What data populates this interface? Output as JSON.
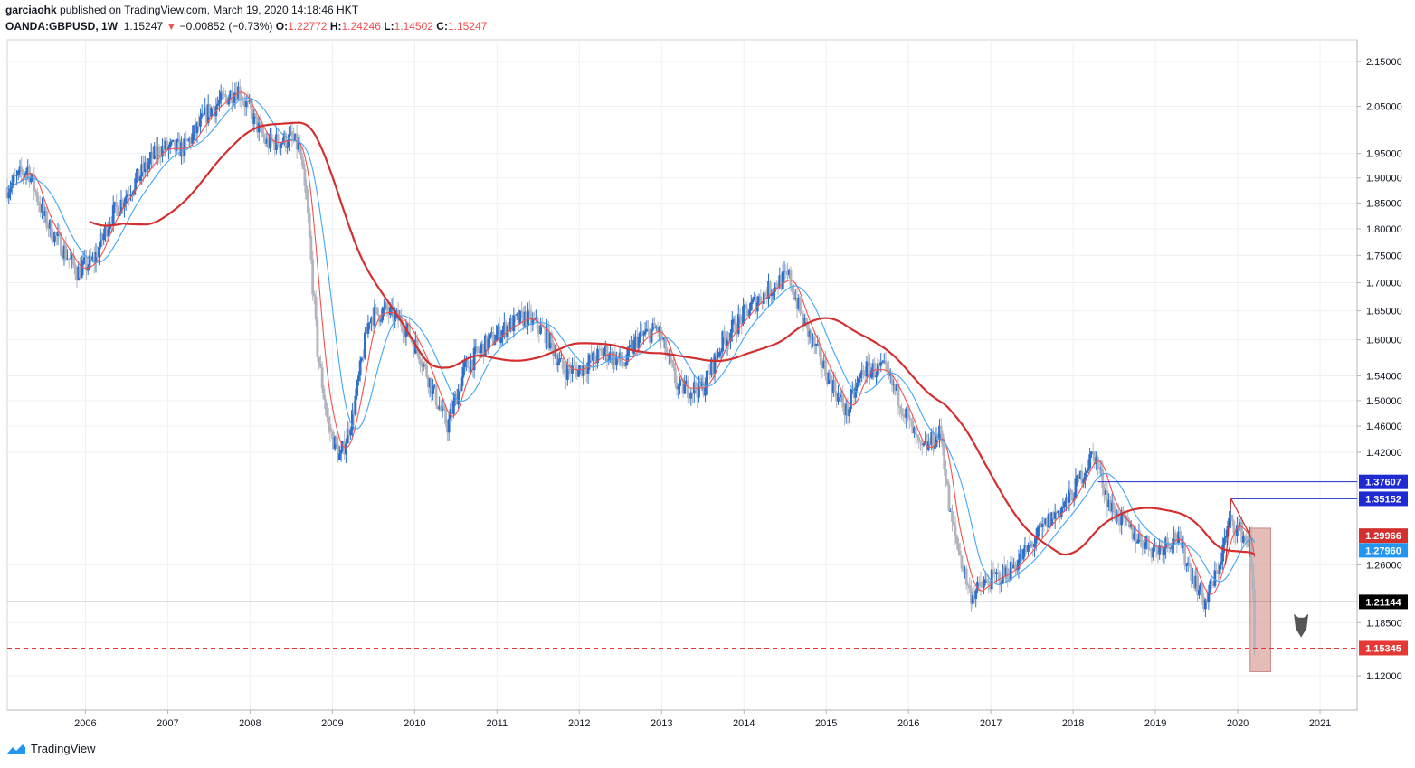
{
  "header": {
    "author": "garciaohk",
    "published_text": "published on TradingView.com, March 19, 2020 14:18:46 HKT",
    "symbol": "OANDA:GBPUSD, 1W",
    "last": "1.15247",
    "change": "−0.00852 (−0.73%)",
    "o_label": "O:",
    "o_value": "1.22772",
    "h_label": "H:",
    "h_value": "1.24246",
    "l_label": "L:",
    "l_value": "1.14502",
    "c_label": "C:",
    "c_value": "1.15247"
  },
  "footer": {
    "brand": "TradingView"
  },
  "colors": {
    "up": "#2f6fc9",
    "down": "#b2b5be",
    "ema_fast": "#ef5350",
    "ema_mid": "#42a5f5",
    "ema_slow": "#d32f2f",
    "support": "#000000",
    "resistance": "#1e2bd0",
    "target": "#e53935",
    "box": "#d8a09a"
  },
  "chart_data": {
    "type": "candlestick",
    "xlabel": "",
    "ylabel": "",
    "x_ticks": [
      "2006",
      "2007",
      "2008",
      "2009",
      "2010",
      "2011",
      "2012",
      "2013",
      "2014",
      "2015",
      "2016",
      "2017",
      "2018",
      "2019",
      "2020",
      "2021"
    ],
    "y_ticks": [
      2.15,
      2.05,
      1.95,
      1.9,
      1.85,
      1.8,
      1.75,
      1.7,
      1.65,
      1.6,
      1.54,
      1.5,
      1.46,
      1.42,
      1.26,
      1.185,
      1.12
    ],
    "y_tick_labels": [
      "2.15000",
      "2.05000",
      "1.95000",
      "1.90000",
      "1.85000",
      "1.80000",
      "1.75000",
      "1.70000",
      "1.65000",
      "1.60000",
      "1.54000",
      "1.50000",
      "1.46000",
      "1.42000",
      "1.26000",
      "1.18500",
      "1.12000"
    ],
    "ylim": [
      1.08,
      2.2
    ],
    "xlim": [
      2005.05,
      2021.45
    ],
    "y_scale": "log",
    "price_path": [
      [
        2005.05,
        1.88
      ],
      [
        2005.3,
        1.92
      ],
      [
        2005.5,
        1.82
      ],
      [
        2005.9,
        1.72
      ],
      [
        2006.1,
        1.74
      ],
      [
        2006.3,
        1.82
      ],
      [
        2006.55,
        1.88
      ],
      [
        2006.9,
        1.96
      ],
      [
        2007.2,
        1.96
      ],
      [
        2007.5,
        2.04
      ],
      [
        2007.85,
        2.09
      ],
      [
        2008.2,
        1.97
      ],
      [
        2008.5,
        1.98
      ],
      [
        2008.6,
        1.96
      ],
      [
        2008.7,
        1.83
      ],
      [
        2008.82,
        1.58
      ],
      [
        2008.95,
        1.46
      ],
      [
        2009.1,
        1.41
      ],
      [
        2009.25,
        1.48
      ],
      [
        2009.45,
        1.64
      ],
      [
        2009.65,
        1.65
      ],
      [
        2009.85,
        1.63
      ],
      [
        2010.05,
        1.58
      ],
      [
        2010.3,
        1.49
      ],
      [
        2010.4,
        1.46
      ],
      [
        2010.6,
        1.55
      ],
      [
        2010.85,
        1.59
      ],
      [
        2011.1,
        1.62
      ],
      [
        2011.35,
        1.64
      ],
      [
        2011.6,
        1.61
      ],
      [
        2011.8,
        1.55
      ],
      [
        2012.0,
        1.55
      ],
      [
        2012.3,
        1.58
      ],
      [
        2012.55,
        1.56
      ],
      [
        2012.7,
        1.6
      ],
      [
        2012.95,
        1.62
      ],
      [
        2013.2,
        1.52
      ],
      [
        2013.5,
        1.52
      ],
      [
        2013.75,
        1.6
      ],
      [
        2014.1,
        1.66
      ],
      [
        2014.4,
        1.7
      ],
      [
        2014.55,
        1.71
      ],
      [
        2014.7,
        1.64
      ],
      [
        2014.95,
        1.56
      ],
      [
        2015.25,
        1.48
      ],
      [
        2015.45,
        1.55
      ],
      [
        2015.7,
        1.55
      ],
      [
        2015.9,
        1.5
      ],
      [
        2016.15,
        1.42
      ],
      [
        2016.4,
        1.45
      ],
      [
        2016.5,
        1.33
      ],
      [
        2016.75,
        1.22
      ],
      [
        2017.0,
        1.24
      ],
      [
        2017.2,
        1.25
      ],
      [
        2017.45,
        1.28
      ],
      [
        2017.7,
        1.32
      ],
      [
        2017.95,
        1.35
      ],
      [
        2018.25,
        1.42
      ],
      [
        2018.45,
        1.34
      ],
      [
        2018.75,
        1.3
      ],
      [
        2019.0,
        1.28
      ],
      [
        2019.25,
        1.3
      ],
      [
        2019.6,
        1.21
      ],
      [
        2019.75,
        1.25
      ],
      [
        2019.9,
        1.32
      ],
      [
        2020.0,
        1.31
      ],
      [
        2020.15,
        1.29
      ],
      [
        2020.22,
        1.15
      ]
    ],
    "moving_averages": [
      {
        "name": "",
        "color": "#ef5350",
        "lag": 0.15
      },
      {
        "name": "",
        "color": "#42a5f5",
        "lag": 0.4
      },
      {
        "name": "",
        "color": "#d32f2f",
        "lag": 1.4
      }
    ],
    "levels": [
      {
        "value": 1.37607,
        "label": "1.37607",
        "color": "#1e2bd0",
        "start_x": 2018.3,
        "style": "solid"
      },
      {
        "value": 1.35152,
        "label": "1.35152",
        "color": "#1e2bd0",
        "start_x": 2019.92,
        "style": "solid"
      },
      {
        "value": 1.29966,
        "label": "1.29966",
        "color": "#d32f2f",
        "start_x": null,
        "style": "tag"
      },
      {
        "value": 1.2796,
        "label": "1.27960",
        "color": "#2196f3",
        "start_x": null,
        "style": "tag"
      },
      {
        "value": 1.21144,
        "label": "1.21144",
        "color": "#000000",
        "start_x": 2005.05,
        "style": "solid"
      },
      {
        "value": 1.15345,
        "label": "1.15345",
        "color": "#e53935",
        "start_x": 2005.05,
        "style": "dashed"
      }
    ],
    "target_box": {
      "x0": 2020.15,
      "x1": 2020.4,
      "y0": 1.31,
      "y1": 1.125
    },
    "annotation": {
      "type": "down-arrow-icon",
      "x": 2020.77,
      "y": 1.18
    }
  }
}
